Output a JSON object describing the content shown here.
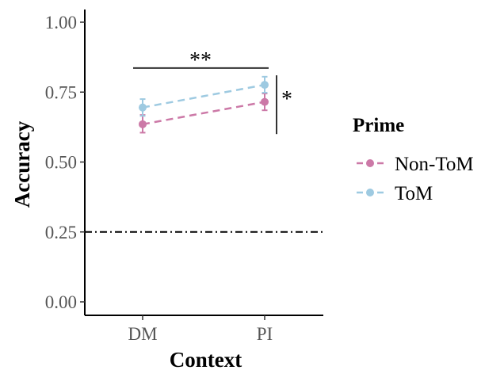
{
  "chart_data": {
    "type": "line",
    "xlabel": "Context",
    "ylabel": "Accuracy",
    "categories": [
      "DM",
      "PI"
    ],
    "ylim": [
      0,
      1.05
    ],
    "yticks": [
      0.0,
      0.25,
      0.5,
      0.75,
      1.0
    ],
    "ytick_labels": [
      "0.00",
      "0.25",
      "0.50",
      "0.75",
      "1.00"
    ],
    "grid": false,
    "legend": {
      "title": "Prime",
      "position": "right"
    },
    "series": [
      {
        "name": "Non-ToM",
        "color": "#cc79a7",
        "linestyle": "dashed",
        "values": [
          0.635,
          0.715
        ],
        "err_low": [
          0.605,
          0.685
        ],
        "err_high": [
          0.668,
          0.745
        ]
      },
      {
        "name": "ToM",
        "color": "#9ecae1",
        "linestyle": "dashed",
        "values": [
          0.695,
          0.776
        ],
        "err_low": [
          0.665,
          0.748
        ],
        "err_high": [
          0.725,
          0.805
        ]
      }
    ],
    "reference_line": {
      "y": 0.25,
      "style": "dotdash",
      "color": "#000000"
    },
    "annotations": [
      {
        "type": "bracket-horizontal",
        "label": "**",
        "from": "DM",
        "to": "PI",
        "y": 0.836
      },
      {
        "type": "bracket-vertical",
        "label": "*",
        "at": "PI",
        "y_from": 0.6,
        "y_to": 0.81
      }
    ]
  }
}
